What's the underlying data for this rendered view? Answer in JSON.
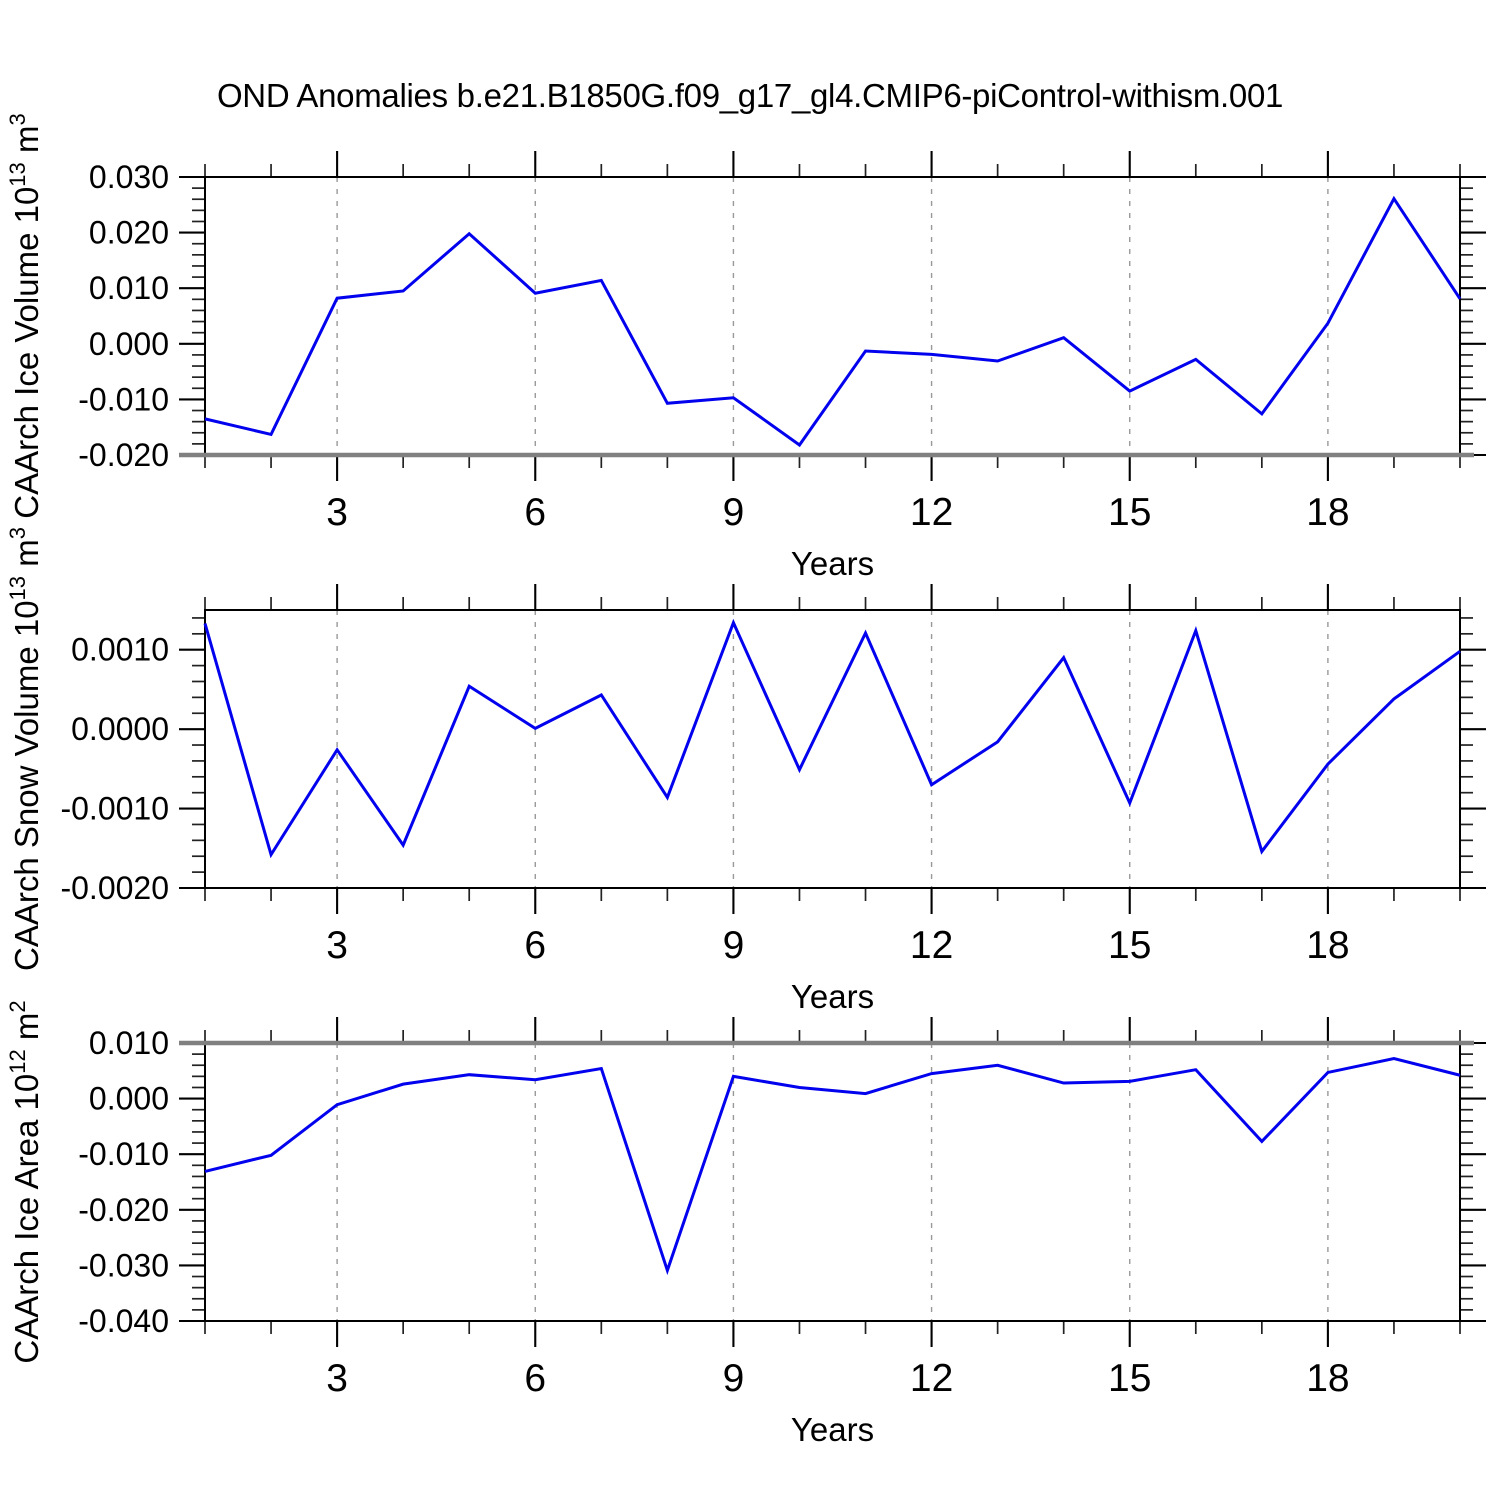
{
  "title": "OND Anomalies b.e21.B1850G.f09_g17_gl4.CMIP6-piControl-withism.001",
  "figure": {
    "background_color": "#ffffff",
    "line_color": "#0202ee",
    "grid_color": "#999999",
    "axis_color": "#000000",
    "minor_tick_color": "#222222",
    "emphasized_edge_color": "#808080"
  },
  "chart_data": [
    {
      "type": "line",
      "panel": "ice-volume",
      "ylabel": "CAArch Ice Volume 10¹³ m³",
      "ylabel_parts": [
        {
          "t": "CAArch Ice Volume 10"
        },
        {
          "t": "13",
          "sup": true
        },
        {
          "t": " m"
        },
        {
          "t": "3",
          "sup": true
        }
      ],
      "xlabel": "Years",
      "x": [
        1,
        2,
        3,
        4,
        5,
        6,
        7,
        8,
        9,
        10,
        11,
        12,
        13,
        14,
        15,
        16,
        17,
        18,
        19,
        20
      ],
      "values": [
        -0.0135,
        -0.0163,
        0.0082,
        0.0095,
        0.0198,
        0.0091,
        0.0114,
        -0.0107,
        -0.0097,
        -0.0182,
        -0.0013,
        -0.0019,
        -0.0031,
        0.0011,
        -0.0085,
        -0.0028,
        -0.0126,
        0.0037,
        0.0261,
        0.0081
      ],
      "xlim": [
        1,
        20
      ],
      "ylim": [
        -0.02,
        0.03
      ],
      "yticks": [
        {
          "v": 0.03,
          "label": "0.030"
        },
        {
          "v": 0.02,
          "label": "0.020"
        },
        {
          "v": 0.01,
          "label": "0.010"
        },
        {
          "v": 0.0,
          "label": "0.000"
        },
        {
          "v": -0.01,
          "label": "-0.010"
        },
        {
          "v": -0.02,
          "label": "-0.020"
        }
      ],
      "y_minor_step": 0.002,
      "xticks": [
        {
          "v": 3,
          "label": "3"
        },
        {
          "v": 6,
          "label": "6"
        },
        {
          "v": 9,
          "label": "9"
        },
        {
          "v": 12,
          "label": "12"
        },
        {
          "v": 15,
          "label": "15"
        },
        {
          "v": 18,
          "label": "18"
        }
      ],
      "x_minor_step": 1,
      "grid": {
        "vertical_dashed_at_major_xticks": true,
        "horizontal": false
      },
      "thick_gray_edge": "bottom"
    },
    {
      "type": "line",
      "panel": "snow-volume",
      "ylabel": "CAArch Snow Volume 10¹³ m³",
      "ylabel_parts": [
        {
          "t": "CAArch Snow Volume 10"
        },
        {
          "t": "13",
          "sup": true
        },
        {
          "t": " m"
        },
        {
          "t": "3",
          "sup": true
        }
      ],
      "xlabel": "Years",
      "x": [
        1,
        2,
        3,
        4,
        5,
        6,
        7,
        8,
        9,
        10,
        11,
        12,
        13,
        14,
        15,
        16,
        17,
        18,
        19,
        20
      ],
      "values": [
        0.00133,
        -0.00158,
        -0.00026,
        -0.00146,
        0.00054,
        1e-05,
        0.00043,
        -0.00086,
        0.00134,
        -0.00051,
        0.00121,
        -0.0007,
        -0.00016,
        0.0009,
        -0.00093,
        0.00124,
        -0.00154,
        -0.00044,
        0.00038,
        0.00098
      ],
      "xlim": [
        1,
        20
      ],
      "ylim": [
        -0.002,
        0.0015
      ],
      "yticks": [
        {
          "v": 0.001,
          "label": "0.0010"
        },
        {
          "v": 0.0,
          "label": "0.0000"
        },
        {
          "v": -0.001,
          "label": "-0.0010"
        },
        {
          "v": -0.002,
          "label": "-0.0020"
        }
      ],
      "y_minor_step": 0.0002,
      "xticks": [
        {
          "v": 3,
          "label": "3"
        },
        {
          "v": 6,
          "label": "6"
        },
        {
          "v": 9,
          "label": "9"
        },
        {
          "v": 12,
          "label": "12"
        },
        {
          "v": 15,
          "label": "15"
        },
        {
          "v": 18,
          "label": "18"
        }
      ],
      "x_minor_step": 1,
      "grid": {
        "vertical_dashed_at_major_xticks": true,
        "horizontal": false
      },
      "thick_gray_edge": null
    },
    {
      "type": "line",
      "panel": "ice-area",
      "ylabel": "CAArch Ice Area 10¹² m²",
      "ylabel_parts": [
        {
          "t": "CAArch Ice Area 10"
        },
        {
          "t": "12",
          "sup": true
        },
        {
          "t": " m"
        },
        {
          "t": "2",
          "sup": true
        }
      ],
      "xlabel": "Years",
      "x": [
        1,
        2,
        3,
        4,
        5,
        6,
        7,
        8,
        9,
        10,
        11,
        12,
        13,
        14,
        15,
        16,
        17,
        18,
        19,
        20
      ],
      "values": [
        -0.0131,
        -0.0102,
        -0.0011,
        0.0026,
        0.0043,
        0.0034,
        0.0054,
        -0.0309,
        0.004,
        0.002,
        0.0009,
        0.0045,
        0.006,
        0.0028,
        0.0031,
        0.0052,
        -0.0077,
        0.0047,
        0.0072,
        0.0042
      ],
      "xlim": [
        1,
        20
      ],
      "ylim": [
        -0.04,
        0.01
      ],
      "yticks": [
        {
          "v": 0.01,
          "label": "0.010"
        },
        {
          "v": 0.0,
          "label": "0.000"
        },
        {
          "v": -0.01,
          "label": "-0.010"
        },
        {
          "v": -0.02,
          "label": "-0.020"
        },
        {
          "v": -0.03,
          "label": "-0.030"
        },
        {
          "v": -0.04,
          "label": "-0.040"
        }
      ],
      "y_minor_step": 0.002,
      "xticks": [
        {
          "v": 3,
          "label": "3"
        },
        {
          "v": 6,
          "label": "6"
        },
        {
          "v": 9,
          "label": "9"
        },
        {
          "v": 12,
          "label": "12"
        },
        {
          "v": 15,
          "label": "15"
        },
        {
          "v": 18,
          "label": "18"
        }
      ],
      "x_minor_step": 1,
      "grid": {
        "vertical_dashed_at_major_xticks": true,
        "horizontal": false
      },
      "thick_gray_edge": "top"
    }
  ]
}
